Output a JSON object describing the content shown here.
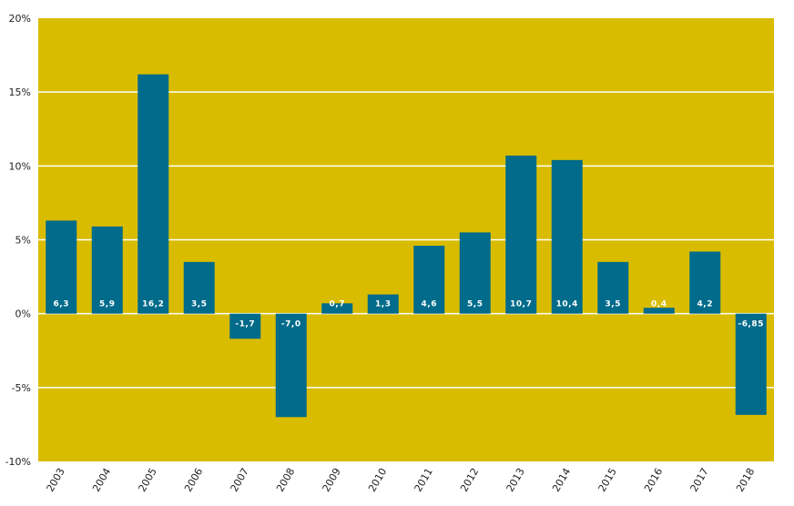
{
  "chart_data": {
    "type": "bar",
    "categories": [
      "2003",
      "2004",
      "2005",
      "2006",
      "2007",
      "2008",
      "2009",
      "2010",
      "2011",
      "2012",
      "2013",
      "2014",
      "2015",
      "2016",
      "2017",
      "2018"
    ],
    "values": [
      6.3,
      5.9,
      16.2,
      3.5,
      -1.7,
      -7.0,
      0.7,
      1.3,
      4.6,
      5.5,
      10.7,
      10.4,
      3.5,
      0.4,
      4.2,
      -6.85
    ],
    "data_labels": [
      "6,3",
      "5,9",
      "16,2",
      "3,5",
      "-1,7",
      "-7,0",
      "0,7",
      "1,3",
      "4,6",
      "5,5",
      "10,7",
      "10,4",
      "3,5",
      "0,4",
      "4,2",
      "-6,85"
    ],
    "y_ticks": [
      20,
      15,
      10,
      5,
      0,
      -5,
      -10
    ],
    "y_tick_labels": [
      "20%",
      "15%",
      "10%",
      "5%",
      "0%",
      "-5%",
      "-10%"
    ],
    "ylim": [
      -10,
      20
    ],
    "grid": true,
    "legend": "none",
    "colors": {
      "plot_bg": "#d9bc00",
      "bar": "#006b8a",
      "grid": "#ffffff"
    }
  }
}
